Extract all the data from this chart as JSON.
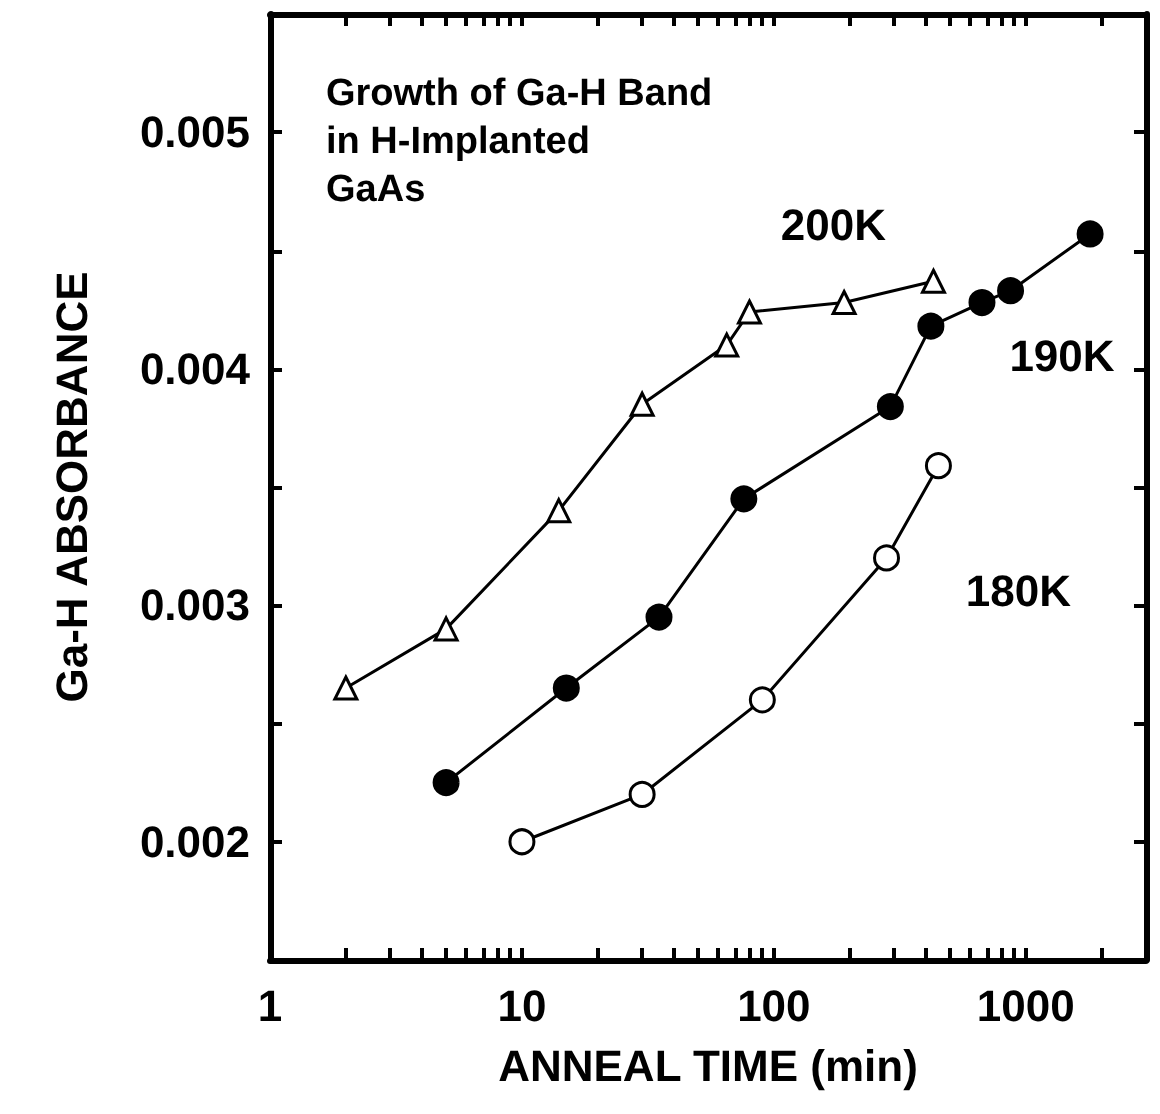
{
  "chart_data": {
    "type": "line",
    "title": "Growth of Ga-H Band\nin H-Implanted\nGaAs",
    "xlabel": "ANNEAL TIME (min)",
    "ylabel": "Ga-H ABSORBANCE",
    "log": "x",
    "grid": false,
    "legend": "right",
    "line_style": "solid",
    "xlim": [
      1,
      3000
    ],
    "ylim": [
      0.0015,
      0.0055
    ],
    "xticks": [
      1,
      {
        "value": 2,
        "label": null
      },
      {
        "value": 3,
        "label": null
      },
      {
        "value": 4,
        "label": null
      },
      {
        "value": 5,
        "label": null
      },
      {
        "value": 6,
        "label": null
      },
      {
        "value": 7,
        "label": null
      },
      {
        "value": 8,
        "label": null
      },
      {
        "value": 9,
        "label": null
      },
      10,
      {
        "value": 20,
        "label": null
      },
      {
        "value": 30,
        "label": null
      },
      {
        "value": 40,
        "label": null
      },
      {
        "value": 50,
        "label": null
      },
      {
        "value": 60,
        "label": null
      },
      {
        "value": 70,
        "label": null
      },
      {
        "value": 80,
        "label": null
      },
      {
        "value": 90,
        "label": null
      },
      100,
      {
        "value": 200,
        "label": null
      },
      {
        "value": 300,
        "label": null
      },
      {
        "value": 400,
        "label": null
      },
      {
        "value": 500,
        "label": null
      },
      {
        "value": 600,
        "label": null
      },
      {
        "value": 700,
        "label": null
      },
      {
        "value": 800,
        "label": null
      },
      {
        "value": 900,
        "label": null
      },
      1000,
      {
        "value": 2000,
        "label": null
      }
    ],
    "yticks": [
      0.002,
      {
        "value": 0.0025,
        "label": null
      },
      0.003,
      {
        "value": 0.0035,
        "label": null
      },
      0.004,
      {
        "value": 0.0045,
        "label": null
      },
      0.005
    ],
    "series": [
      {
        "name": "200K",
        "color": "#000000",
        "marker": "triangle",
        "x": [
          2,
          5,
          14,
          30,
          65,
          80,
          190,
          430
        ],
        "values": [
          0.00265,
          0.0029,
          0.0034,
          0.00385,
          0.0041,
          0.00424,
          0.00428,
          0.00437
        ]
      },
      {
        "name": "190K",
        "color": "#000000",
        "marker": "circle",
        "x": [
          5,
          15,
          35,
          76,
          290,
          420,
          670,
          870,
          1800
        ],
        "values": [
          0.00225,
          0.00265,
          0.00295,
          0.00345,
          0.00384,
          0.00418,
          0.00428,
          0.00433,
          0.00457
        ]
      },
      {
        "name": "180K",
        "color": "#000000",
        "marker": "circle",
        "x": [
          10,
          30,
          90,
          280,
          450
        ],
        "values": [
          0.002,
          0.0022,
          0.0026,
          0.0032,
          0.00359
        ]
      }
    ]
  }
}
